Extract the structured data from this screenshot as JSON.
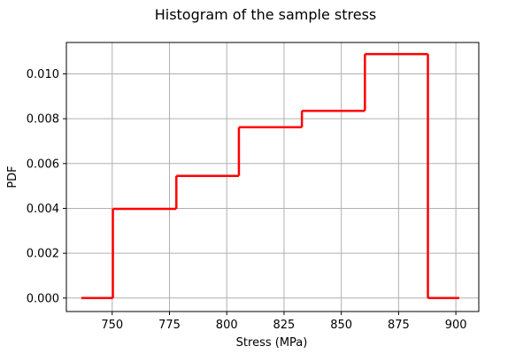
{
  "chart_data": {
    "type": "line",
    "title": "Histogram of the sample stress",
    "xlabel": "Stress (MPa)",
    "ylabel": "PDF",
    "xlim": [
      730,
      910
    ],
    "ylim": [
      -0.0006,
      0.0114
    ],
    "xticks": [
      750,
      775,
      800,
      825,
      850,
      875,
      900
    ],
    "yticks": [
      0.0,
      0.002,
      0.004,
      0.006,
      0.008,
      0.01
    ],
    "xtick_labels": [
      "750",
      "775",
      "800",
      "825",
      "850",
      "875",
      "900"
    ],
    "ytick_labels": [
      "0.000",
      "0.002",
      "0.004",
      "0.006",
      "0.008",
      "0.010"
    ],
    "grid": true,
    "series": [
      {
        "color": "#ff0000",
        "x": [
          736.5,
          750.3,
          750.3,
          778.0,
          778.0,
          805.3,
          805.3,
          832.8,
          832.8,
          860.3,
          860.3,
          887.8,
          887.8,
          901.5
        ],
        "y": [
          0.0,
          0.0,
          0.00398,
          0.00398,
          0.00545,
          0.00545,
          0.00762,
          0.00762,
          0.00835,
          0.00835,
          0.01088,
          0.01088,
          0.0,
          0.0
        ]
      }
    ]
  }
}
